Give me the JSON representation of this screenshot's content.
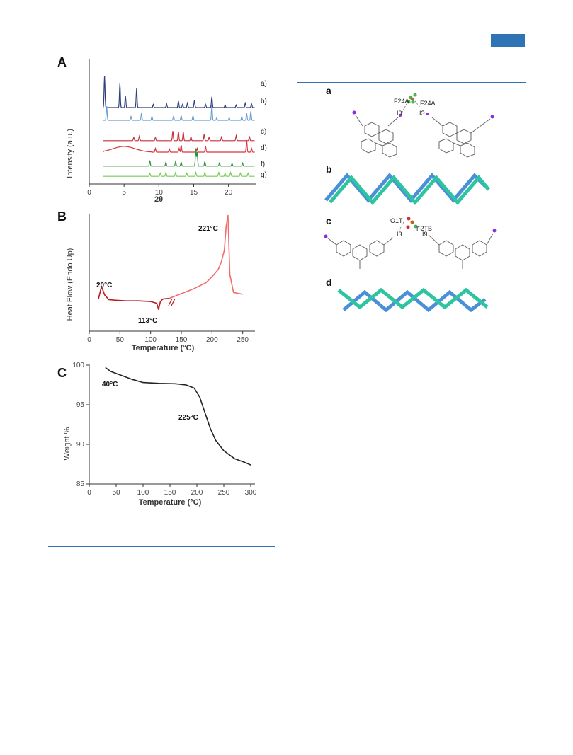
{
  "header": {
    "accent_color": "#2e74b5"
  },
  "figure_left": {
    "panel_a": {
      "label": "A",
      "ylabel": "Intensity (a.u.)",
      "xlabel": "2θ",
      "x_ticks": [
        "0",
        "5",
        "10",
        "15",
        "20"
      ],
      "series_labels": [
        "a)",
        "b)",
        "c)",
        "d)",
        "f)",
        "g)"
      ]
    },
    "panel_b": {
      "label": "B",
      "ylabel": "Heat Flow (Endo Up)",
      "xlabel": "Temperature (°C)",
      "x_ticks": [
        "0",
        "50",
        "100",
        "150",
        "200",
        "250"
      ],
      "annotations": [
        "20°C",
        "113°C",
        "221°C"
      ]
    },
    "panel_c": {
      "label": "C",
      "ylabel": "Weight %",
      "xlabel": "Temperature (°C)",
      "x_ticks": [
        "0",
        "50",
        "100",
        "150",
        "200",
        "250",
        "300"
      ],
      "y_ticks": [
        "100",
        "95",
        "90",
        "85"
      ],
      "annotations": [
        "40°C",
        "225°C"
      ]
    }
  },
  "figure_right": {
    "panels": [
      "a",
      "b",
      "c",
      "d"
    ],
    "atom_labels_a": [
      "F24A",
      "F24A",
      "I3",
      "I3"
    ],
    "atom_labels_c": [
      "O1T",
      "F2TB",
      "I3",
      "I9"
    ]
  },
  "chart_data": [
    {
      "type": "line",
      "title": "A",
      "xlabel": "2θ",
      "ylabel": "Intensity (a.u.)",
      "xlim": [
        0,
        24
      ],
      "series": [
        {
          "name": "a)",
          "color": "#2f3f7a",
          "offset": 6,
          "peaks": [
            [
              2.2,
              2.5
            ],
            [
              4.4,
              1.9
            ],
            [
              5.2,
              0.9
            ],
            [
              6.8,
              1.5
            ],
            [
              9.2,
              0.25
            ],
            [
              11.1,
              0.3
            ],
            [
              12.8,
              0.5
            ],
            [
              13.4,
              0.25
            ],
            [
              14.1,
              0.35
            ],
            [
              15.1,
              0.55
            ],
            [
              16.7,
              0.25
            ],
            [
              17.6,
              0.85
            ],
            [
              19.5,
              0.2
            ],
            [
              21.1,
              0.2
            ],
            [
              22.4,
              0.35
            ],
            [
              23.3,
              0.3
            ]
          ]
        },
        {
          "name": "b)",
          "color": "#6b9fcf",
          "offset": 5,
          "peaks": [
            [
              2.5,
              1.1
            ],
            [
              6.0,
              0.3
            ],
            [
              7.5,
              0.55
            ],
            [
              9.0,
              0.3
            ],
            [
              12.1,
              0.3
            ],
            [
              13.2,
              0.35
            ],
            [
              14.9,
              0.35
            ],
            [
              17.6,
              1.2
            ],
            [
              18.3,
              0.2
            ],
            [
              20.1,
              0.2
            ],
            [
              21.9,
              0.3
            ],
            [
              22.6,
              0.55
            ],
            [
              23.2,
              0.7
            ]
          ]
        },
        {
          "name": "c)",
          "color": "#c8323a",
          "offset": 3.4,
          "peaks": [
            [
              6.4,
              0.25
            ],
            [
              7.2,
              0.35
            ],
            [
              9.5,
              0.25
            ],
            [
              12.0,
              0.75
            ],
            [
              12.8,
              0.7
            ],
            [
              13.5,
              0.7
            ],
            [
              14.6,
              0.3
            ],
            [
              16.5,
              0.5
            ],
            [
              17.2,
              0.25
            ],
            [
              19.0,
              0.3
            ],
            [
              21.1,
              0.4
            ],
            [
              23.0,
              0.3
            ]
          ]
        },
        {
          "name": "d)",
          "color": "#d9343c",
          "offset": 2.5,
          "peaks": [
            [
              9.5,
              0.3
            ],
            [
              11.5,
              0.25
            ],
            [
              12.9,
              0.3
            ],
            [
              13.2,
              0.55
            ],
            [
              15.5,
              0.3
            ],
            [
              16.7,
              0.45
            ],
            [
              22.6,
              0.95
            ],
            [
              23.3,
              0.3
            ]
          ]
        },
        {
          "name": "f)",
          "color": "#2f8f3a",
          "offset": 1.4,
          "peaks": [
            [
              8.7,
              0.45
            ],
            [
              11.0,
              0.3
            ],
            [
              12.4,
              0.35
            ],
            [
              13.2,
              0.3
            ],
            [
              15.3,
              1.4
            ],
            [
              15.5,
              1.1
            ],
            [
              16.6,
              0.35
            ],
            [
              18.7,
              0.25
            ],
            [
              20.5,
              0.2
            ],
            [
              22.0,
              0.25
            ]
          ]
        },
        {
          "name": "g)",
          "color": "#7ac95a",
          "offset": 0.6,
          "peaks": [
            [
              8.7,
              0.25
            ],
            [
              10.2,
              0.25
            ],
            [
              11.0,
              0.3
            ],
            [
              12.4,
              0.3
            ],
            [
              14.0,
              0.25
            ],
            [
              15.3,
              0.3
            ],
            [
              16.6,
              0.3
            ],
            [
              18.6,
              0.3
            ],
            [
              19.5,
              0.25
            ],
            [
              20.3,
              0.3
            ],
            [
              21.7,
              0.25
            ],
            [
              22.8,
              0.25
            ]
          ]
        }
      ]
    },
    {
      "type": "line",
      "title": "B",
      "xlabel": "Temperature (°C)",
      "ylabel": "Heat Flow (Endo Up)",
      "xlim": [
        0,
        270
      ],
      "series": [
        {
          "name": "",
          "color": "#b71c1c",
          "x": [
            15,
            20,
            25,
            32,
            45,
            60,
            80,
            100,
            110,
            113,
            116,
            120,
            130
          ],
          "y": [
            0.55,
            1.6,
            0.9,
            0.5,
            0.45,
            0.4,
            0.4,
            0.35,
            0.2,
            -0.3,
            0.35,
            0.55,
            0.6
          ]
        },
        {
          "name": "",
          "color": "#f26b6b",
          "x": [
            130,
            150,
            170,
            190,
            200,
            210,
            215,
            220,
            223,
            226,
            229,
            235,
            250
          ],
          "y": [
            0.6,
            1.0,
            1.4,
            1.9,
            2.4,
            3.0,
            3.6,
            4.6,
            6.6,
            7.5,
            2.6,
            1.1,
            0.95
          ]
        }
      ]
    },
    {
      "type": "line",
      "title": "C",
      "xlabel": "Temperature (°C)",
      "ylabel": "Weight %",
      "xlim": [
        0,
        300
      ],
      "ylim": [
        85,
        100
      ],
      "series": [
        {
          "name": "",
          "color": "#222222",
          "x": [
            30,
            40,
            60,
            80,
            100,
            130,
            160,
            180,
            195,
            205,
            215,
            225,
            235,
            250,
            270,
            290,
            300
          ],
          "y": [
            99.7,
            99.2,
            98.7,
            98.2,
            97.8,
            97.7,
            97.65,
            97.5,
            97.1,
            96.0,
            94.0,
            92.0,
            90.5,
            89.2,
            88.2,
            87.7,
            87.4
          ]
        }
      ]
    }
  ]
}
